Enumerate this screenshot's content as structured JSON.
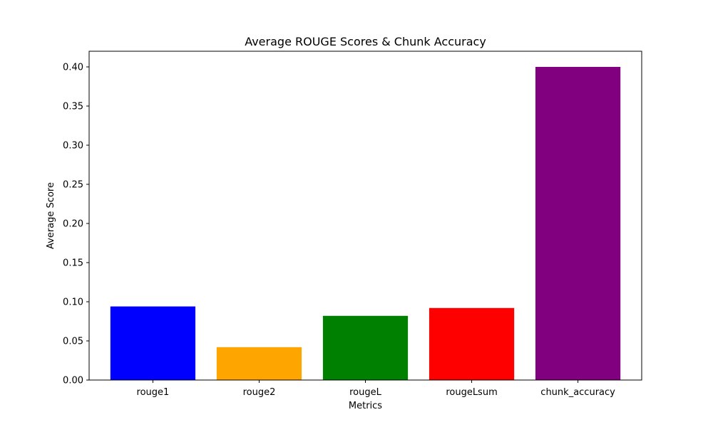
{
  "chart_data": {
    "type": "bar",
    "title": "Average ROUGE Scores & Chunk Accuracy",
    "xlabel": "Metrics",
    "ylabel": "Average Score",
    "categories": [
      "rouge1",
      "rouge2",
      "rougeL",
      "rougeLsum",
      "chunk_accuracy"
    ],
    "values": [
      0.094,
      0.042,
      0.082,
      0.092,
      0.4
    ],
    "colors": [
      "#0000ff",
      "#ffa500",
      "#008000",
      "#ff0000",
      "#800080"
    ],
    "ylim": [
      0,
      0.42
    ],
    "yticks": [
      0.0,
      0.05,
      0.1,
      0.15,
      0.2,
      0.25,
      0.3,
      0.35,
      0.4
    ],
    "ytick_labels": [
      "0.00",
      "0.05",
      "0.10",
      "0.15",
      "0.20",
      "0.25",
      "0.30",
      "0.35",
      "0.40"
    ],
    "grid": false,
    "legend": false
  }
}
